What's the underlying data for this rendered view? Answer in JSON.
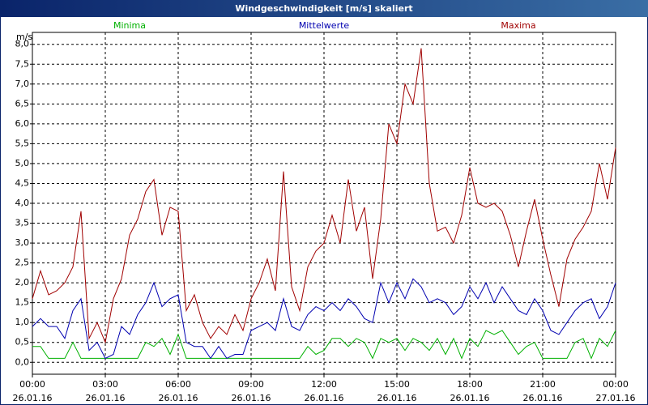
{
  "chart_data": {
    "type": "line",
    "title": "Windgeschwindigkeit [m/s] skaliert",
    "ylabel": "m/s",
    "x": [
      0,
      20,
      40,
      60,
      80,
      100,
      120,
      140,
      160,
      180,
      200,
      220,
      240,
      260,
      280,
      300,
      320,
      340,
      360,
      380,
      400,
      420,
      440,
      460,
      480,
      500,
      520,
      540,
      560,
      580,
      600,
      620,
      640,
      660,
      680,
      700,
      720,
      740,
      760,
      780,
      800,
      820,
      840,
      860,
      880,
      900,
      920,
      940,
      960,
      980,
      1000,
      1020,
      1040,
      1060,
      1080,
      1100,
      1120,
      1140,
      1160,
      1180,
      1200,
      1220,
      1240,
      1260,
      1280,
      1300,
      1320,
      1340,
      1360,
      1380,
      1400,
      1420,
      1440
    ],
    "xlim": [
      0,
      1440
    ],
    "xticks": [
      {
        "value": 0,
        "label": "00:00",
        "date": "26.01.16"
      },
      {
        "value": 180,
        "label": "03:00",
        "date": "26.01.16"
      },
      {
        "value": 360,
        "label": "06:00",
        "date": "26.01.16"
      },
      {
        "value": 540,
        "label": "09:00",
        "date": "26.01.16"
      },
      {
        "value": 720,
        "label": "12:00",
        "date": "26.01.16"
      },
      {
        "value": 900,
        "label": "15:00",
        "date": "26.01.16"
      },
      {
        "value": 1080,
        "label": "18:00",
        "date": "26.01.16"
      },
      {
        "value": 1260,
        "label": "21:00",
        "date": "26.01.16"
      },
      {
        "value": 1440,
        "label": "00:00",
        "date": "27.01.16"
      }
    ],
    "ylim": [
      -0.3,
      8.3
    ],
    "yticks": [
      {
        "value": 0,
        "label": "0,0"
      },
      {
        "value": 0.5,
        "label": "0,5"
      },
      {
        "value": 1,
        "label": "1,0"
      },
      {
        "value": 1.5,
        "label": "1,5"
      },
      {
        "value": 2,
        "label": "2,0"
      },
      {
        "value": 2.5,
        "label": "2,5"
      },
      {
        "value": 3,
        "label": "3,0"
      },
      {
        "value": 3.5,
        "label": "3,5"
      },
      {
        "value": 4,
        "label": "4,0"
      },
      {
        "value": 4.5,
        "label": "4,5"
      },
      {
        "value": 5,
        "label": "5,0"
      },
      {
        "value": 5.5,
        "label": "5,5"
      },
      {
        "value": 6,
        "label": "6,0"
      },
      {
        "value": 6.5,
        "label": "6,5"
      },
      {
        "value": 7,
        "label": "7,0"
      },
      {
        "value": 7.5,
        "label": "7,5"
      },
      {
        "value": 8,
        "label": "8,0"
      }
    ],
    "grid": true,
    "series": [
      {
        "name": "Minima",
        "color": "#00b000",
        "values": [
          0.4,
          0.4,
          0.1,
          0.1,
          0.1,
          0.5,
          0.1,
          0.1,
          0.1,
          0.1,
          0.1,
          0.1,
          0.1,
          0.1,
          0.5,
          0.4,
          0.6,
          0.2,
          0.7,
          0.1,
          0.1,
          0.1,
          0.1,
          0.1,
          0.1,
          0.1,
          0.1,
          0.1,
          0.1,
          0.1,
          0.1,
          0.1,
          0.1,
          0.1,
          0.4,
          0.2,
          0.3,
          0.6,
          0.6,
          0.4,
          0.6,
          0.5,
          0.1,
          0.6,
          0.5,
          0.6,
          0.3,
          0.6,
          0.5,
          0.3,
          0.6,
          0.2,
          0.6,
          0.1,
          0.6,
          0.4,
          0.8,
          0.7,
          0.8,
          0.5,
          0.2,
          0.4,
          0.5,
          0.1,
          0.1,
          0.1,
          0.1,
          0.5,
          0.6,
          0.1,
          0.6,
          0.4,
          0.8
        ]
      },
      {
        "name": "Mittelwerte",
        "color": "#0000b0",
        "values": [
          0.9,
          1.1,
          0.9,
          0.9,
          0.6,
          1.3,
          1.6,
          0.3,
          0.5,
          0.1,
          0.2,
          0.9,
          0.7,
          1.2,
          1.5,
          2.0,
          1.4,
          1.6,
          1.7,
          0.5,
          0.4,
          0.4,
          0.1,
          0.4,
          0.1,
          0.2,
          0.2,
          0.8,
          0.9,
          1.0,
          0.8,
          1.6,
          0.9,
          0.8,
          1.2,
          1.4,
          1.3,
          1.5,
          1.3,
          1.6,
          1.4,
          1.1,
          1.0,
          2.0,
          1.5,
          2.0,
          1.6,
          2.1,
          1.9,
          1.5,
          1.6,
          1.5,
          1.2,
          1.4,
          1.9,
          1.6,
          2.0,
          1.5,
          1.9,
          1.6,
          1.3,
          1.2,
          1.6,
          1.3,
          0.8,
          0.7,
          1.0,
          1.3,
          1.5,
          1.6,
          1.1,
          1.4,
          2.0
        ]
      },
      {
        "name": "Maxima",
        "color": "#a00000",
        "values": [
          1.6,
          2.3,
          1.7,
          1.8,
          2.0,
          2.4,
          3.8,
          0.6,
          1.0,
          0.5,
          1.6,
          2.1,
          3.2,
          3.6,
          4.3,
          4.6,
          3.2,
          3.9,
          3.8,
          1.3,
          1.7,
          1.0,
          0.6,
          0.9,
          0.7,
          1.2,
          0.8,
          1.6,
          2.0,
          2.6,
          1.8,
          4.8,
          1.9,
          1.3,
          2.4,
          2.8,
          3.0,
          3.7,
          3.0,
          4.6,
          3.3,
          3.9,
          2.1,
          3.6,
          6.0,
          5.5,
          7.0,
          6.5,
          7.9,
          4.5,
          3.3,
          3.4,
          3.0,
          3.7,
          4.9,
          4.0,
          3.9,
          4.0,
          3.8,
          3.2,
          2.4,
          3.3,
          4.1,
          3.1,
          2.2,
          1.4,
          2.6,
          3.1,
          3.4,
          3.8,
          5.0,
          4.1,
          5.4
        ]
      }
    ]
  }
}
